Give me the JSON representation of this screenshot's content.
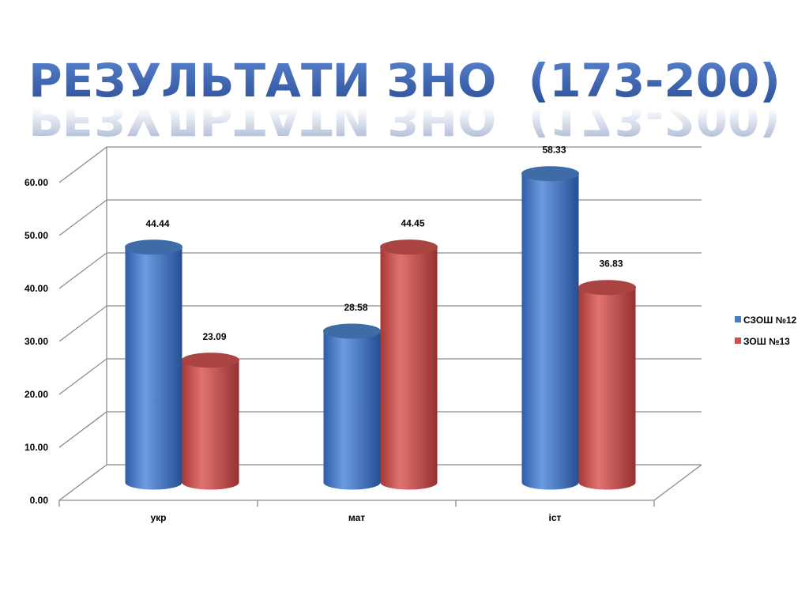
{
  "chart_data": {
    "type": "bar",
    "title": "РЕЗУЛЬТАТИ ЗНО  (173-200)",
    "categories": [
      "укр",
      "мат",
      "іст"
    ],
    "series": [
      {
        "name": "СЗОШ №12",
        "color": "#4a7ec4",
        "values": [
          44.44,
          28.58,
          58.33
        ]
      },
      {
        "name": "ЗОШ №13",
        "color": "#c8504e",
        "values": [
          23.09,
          44.45,
          36.83
        ]
      }
    ],
    "ylim": [
      0,
      60
    ],
    "yticks": [
      {
        "value": 0,
        "label": "0.00"
      },
      {
        "value": 10,
        "label": "10.00"
      },
      {
        "value": 20,
        "label": "20.00"
      },
      {
        "value": 30,
        "label": "30.00"
      },
      {
        "value": 40,
        "label": "40.00"
      },
      {
        "value": 50,
        "label": "50.00"
      },
      {
        "value": 60,
        "label": "60.00"
      }
    ],
    "grid": true,
    "legend": "right"
  }
}
